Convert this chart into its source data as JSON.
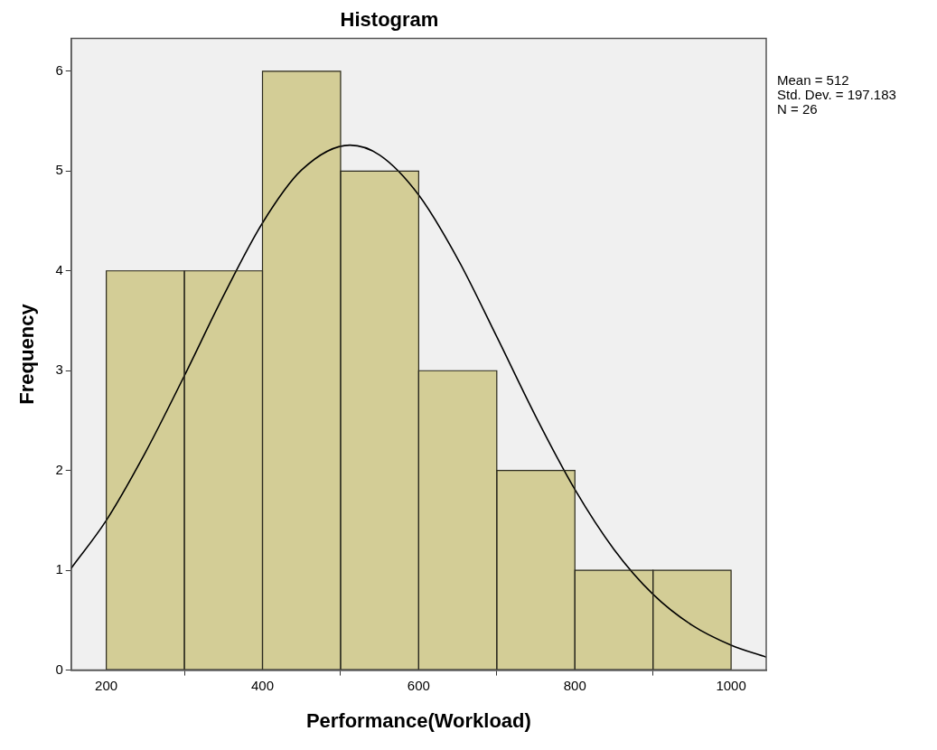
{
  "chart_data": {
    "type": "histogram",
    "title": "Histogram",
    "xlabel": "Performance(Workload)",
    "ylabel": "Frequency",
    "bins": [
      200,
      300,
      400,
      500,
      600,
      700,
      800,
      900,
      1000
    ],
    "values": [
      4,
      4,
      6,
      5,
      3,
      2,
      1,
      1
    ],
    "color": "#d3cd96",
    "series": [
      {
        "type": "line",
        "color": "#000000",
        "x": [
          155,
          200,
          250,
          300,
          350,
          400,
          450,
          512,
          550,
          600,
          650,
          700,
          750,
          800,
          850,
          900,
          950,
          1000,
          1045
        ],
        "values": [
          1.02,
          1.5,
          2.18,
          2.95,
          3.75,
          4.48,
          5.01,
          5.26,
          5.16,
          4.76,
          4.12,
          3.34,
          2.54,
          1.81,
          1.21,
          0.76,
          0.45,
          0.25,
          0.13
        ]
      }
    ],
    "xlim": [
      155,
      1045
    ],
    "xticks": [
      200,
      400,
      600,
      800,
      1000
    ],
    "ylim": [
      0,
      6.33
    ],
    "yticks": [
      0,
      1,
      2,
      3,
      4,
      5,
      6
    ],
    "grid": false,
    "legend": false,
    "marker": "none",
    "annotations": [
      "Mean = 512",
      "Std. Dev. = 197.183",
      "N = 26"
    ]
  }
}
